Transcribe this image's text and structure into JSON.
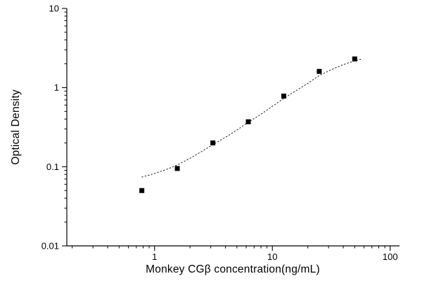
{
  "figure_title": "",
  "chart_data": {
    "type": "scatter",
    "title": "",
    "xlabel": "Monkey CGβ  concentration(ng/mL)",
    "ylabel": "Optical Density",
    "x_scale": "log",
    "y_scale": "log",
    "xlim": [
      0.18,
      120
    ],
    "ylim": [
      0.01,
      10
    ],
    "x_major_ticks": [
      1,
      10,
      100
    ],
    "x_tick_labels": [
      "1",
      "10",
      "100"
    ],
    "y_major_ticks": [
      0.01,
      0.1,
      1,
      10
    ],
    "y_tick_labels": [
      "0.01",
      "0.1",
      "1",
      "10"
    ],
    "grid": "off",
    "legend": "none",
    "marker": "filled-square",
    "curve_style": "dotted",
    "points": {
      "x": [
        0.78,
        1.56,
        3.125,
        6.25,
        12.5,
        25,
        50
      ],
      "y": [
        0.05,
        0.095,
        0.2,
        0.37,
        0.78,
        1.6,
        2.3
      ]
    },
    "fit_curve": {
      "x": [
        0.78,
        1.0,
        1.3,
        1.6,
        2.0,
        2.5,
        3.125,
        4.0,
        5.0,
        6.25,
        8.0,
        10.0,
        12.5,
        16.0,
        20.0,
        25.0,
        32.0,
        40.0,
        50.0,
        56.0
      ],
      "y": [
        0.074,
        0.082,
        0.094,
        0.107,
        0.128,
        0.155,
        0.19,
        0.235,
        0.29,
        0.365,
        0.46,
        0.58,
        0.73,
        0.92,
        1.13,
        1.42,
        1.7,
        1.95,
        2.18,
        2.28
      ]
    },
    "colors": {
      "axis": "#000000",
      "marker": "#000000",
      "curve": "#000000",
      "background": "#ffffff"
    }
  }
}
